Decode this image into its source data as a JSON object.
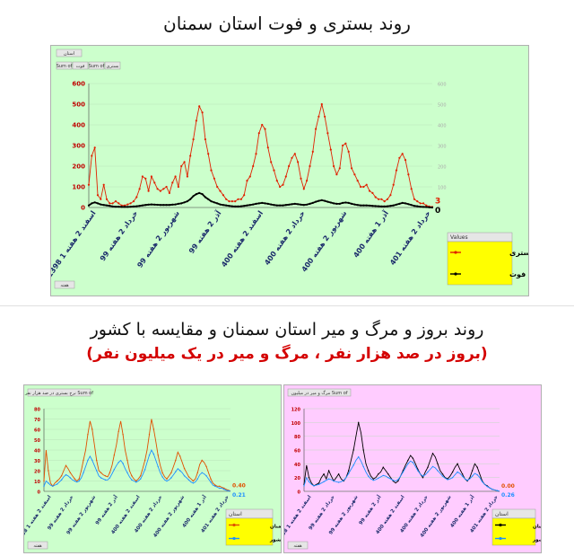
{
  "page": {
    "title_top": "روند بستری و فوت استان سمنان",
    "title_bottom": "روند بروز و مرگ و میر استان سمنان و مقایسه با کشور",
    "subtitle_bottom": "(بروز در صد هزار نفر ، مرگ و میر در یک میلیون نفر)"
  },
  "colors": {
    "red": "#e02000",
    "black": "#000000",
    "blue": "#1e90ff",
    "orange": "#e05000",
    "green_bg": "#ccffcc",
    "pink_bg": "#ffccff",
    "legend_bg": "#ffff00"
  },
  "chart_data": [
    {
      "id": "top",
      "type": "line",
      "controls": {
        "filter_label": "استان",
        "field_buttons": [
          "Sum of",
          "فوت",
          "Sum of",
          "بستری"
        ],
        "axis_button": "هفته"
      },
      "ylim": [
        0,
        600
      ],
      "yticks": [
        "0",
        "100",
        "200",
        "300",
        "400",
        "500",
        "600"
      ],
      "y2lim": [
        0,
        600
      ],
      "y2ticks": [
        "0",
        "100",
        "200",
        "300",
        "400",
        "500",
        "600"
      ],
      "xticks": [
        "1398 اسفند 2 هفته 1",
        "99 خرداد 2 هفته",
        "99 شهریور 2 هفته",
        "99 آذر 2 هفته",
        "400 اسفند 2 هفته",
        "400 خرداد 2 هفته",
        "400 شهریور 2 هفته",
        "400 آذر 1 هفته",
        "401 خرداد 2 هفته"
      ],
      "legend_title": "Values",
      "series": [
        {
          "name": "Sum of بستری",
          "color": "#e02000",
          "end_label": "3",
          "values": [
            110,
            250,
            290,
            60,
            40,
            110,
            40,
            20,
            20,
            30,
            20,
            10,
            10,
            15,
            20,
            30,
            50,
            90,
            150,
            140,
            80,
            150,
            120,
            90,
            80,
            90,
            100,
            70,
            120,
            150,
            100,
            200,
            220,
            150,
            250,
            330,
            420,
            490,
            460,
            330,
            260,
            180,
            140,
            100,
            80,
            60,
            40,
            30,
            30,
            30,
            40,
            40,
            60,
            130,
            150,
            200,
            260,
            360,
            400,
            380,
            290,
            220,
            180,
            130,
            100,
            110,
            150,
            200,
            240,
            260,
            220,
            140,
            90,
            130,
            200,
            270,
            380,
            440,
            500,
            440,
            360,
            280,
            200,
            160,
            190,
            300,
            310,
            270,
            190,
            160,
            130,
            100,
            100,
            110,
            80,
            70,
            50,
            40,
            40,
            30,
            40,
            60,
            110,
            180,
            240,
            260,
            230,
            160,
            90,
            40,
            30,
            20,
            20,
            10,
            5,
            3
          ]
        },
        {
          "name": "Sum of فوت",
          "color": "#000000",
          "end_label": "0",
          "values": [
            10,
            20,
            25,
            20,
            15,
            12,
            10,
            8,
            5,
            4,
            4,
            3,
            3,
            3,
            4,
            5,
            6,
            8,
            10,
            12,
            14,
            15,
            14,
            13,
            12,
            12,
            12,
            12,
            14,
            15,
            18,
            20,
            25,
            30,
            40,
            55,
            65,
            70,
            65,
            50,
            40,
            30,
            25,
            20,
            15,
            12,
            10,
            8,
            6,
            5,
            5,
            6,
            8,
            10,
            12,
            15,
            18,
            20,
            22,
            20,
            18,
            15,
            12,
            10,
            10,
            10,
            12,
            14,
            16,
            18,
            16,
            14,
            12,
            14,
            18,
            22,
            28,
            32,
            35,
            32,
            28,
            24,
            20,
            18,
            18,
            22,
            24,
            22,
            18,
            15,
            12,
            10,
            10,
            10,
            9,
            8,
            7,
            6,
            5,
            5,
            6,
            8,
            10,
            14,
            18,
            22,
            20,
            16,
            12,
            8,
            6,
            4,
            3,
            2,
            1,
            0
          ]
        }
      ]
    },
    {
      "id": "left",
      "type": "line",
      "controls": {
        "header_button": "نرخ بستری در صد هزار نفر Sum of",
        "filter_label": "استان",
        "axis_button": "هفته"
      },
      "ylim": [
        0,
        80
      ],
      "yticks": [
        "0",
        "10",
        "20",
        "30",
        "40",
        "50",
        "60",
        "70",
        "80"
      ],
      "xticks": [
        "1398 اسفند 2 هفته 1",
        "99 خرداد 2 هفته",
        "99 شهریور 2 هفته",
        "99 آذر 2 هفته",
        "400 اسفند 2 هفته",
        "400 خرداد 2 هفته",
        "400 شهریور 2 هفته",
        "400 آذر 1 هفته",
        "401 خرداد 2 هفته"
      ],
      "legend_title": "استان",
      "series": [
        {
          "name": "سمنان",
          "color": "#e05000",
          "end_label": "0.40",
          "values": [
            10,
            40,
            20,
            8,
            5,
            8,
            10,
            12,
            15,
            20,
            25,
            22,
            18,
            15,
            12,
            10,
            12,
            20,
            30,
            40,
            55,
            68,
            60,
            45,
            30,
            20,
            18,
            16,
            15,
            14,
            18,
            25,
            35,
            45,
            58,
            68,
            55,
            40,
            30,
            20,
            15,
            12,
            10,
            12,
            15,
            22,
            30,
            40,
            55,
            70,
            60,
            48,
            35,
            25,
            18,
            14,
            12,
            15,
            18,
            24,
            30,
            38,
            34,
            28,
            22,
            18,
            14,
            12,
            10,
            12,
            18,
            26,
            30,
            28,
            24,
            18,
            12,
            8,
            6,
            5,
            5,
            4,
            3,
            2,
            1,
            0.4
          ]
        },
        {
          "name": "کل کشور",
          "color": "#1e90ff",
          "end_label": "0.21",
          "values": [
            5,
            10,
            8,
            6,
            5,
            6,
            7,
            9,
            11,
            14,
            16,
            15,
            13,
            11,
            10,
            9,
            10,
            13,
            18,
            24,
            30,
            34,
            30,
            25,
            20,
            15,
            13,
            12,
            11,
            11,
            13,
            17,
            21,
            25,
            28,
            30,
            27,
            22,
            18,
            14,
            11,
            10,
            9,
            10,
            12,
            16,
            21,
            28,
            35,
            40,
            36,
            30,
            24,
            18,
            14,
            11,
            10,
            11,
            13,
            16,
            19,
            22,
            20,
            18,
            15,
            13,
            11,
            9,
            8,
            9,
            12,
            16,
            18,
            17,
            15,
            12,
            9,
            6,
            5,
            4,
            3,
            3,
            2,
            1,
            0.5,
            0.21
          ]
        }
      ]
    },
    {
      "id": "right",
      "type": "line",
      "controls": {
        "header_button": "مرگ و میر در میلیون Sum of",
        "filter_label": "استان",
        "axis_button": "هفته"
      },
      "ylim": [
        0,
        120
      ],
      "yticks": [
        "0",
        "20",
        "40",
        "60",
        "80",
        "100",
        "120"
      ],
      "xticks": [
        "1398 اسفند 2 هفته 1",
        "99 خرداد 2 هفته",
        "99 شهریور 2 هفته",
        "99 آذر 2 هفته",
        "400 اسفند 2 هفته",
        "400 خرداد 2 هفته",
        "400 شهریور 2 هفته",
        "400 آذر 1 هفته",
        "401 خرداد 2 هفته"
      ],
      "legend_title": "استان",
      "series": [
        {
          "name": "سمنان",
          "color": "#000000",
          "end_label": "0.00",
          "values": [
            10,
            38,
            20,
            12,
            8,
            10,
            12,
            20,
            25,
            18,
            30,
            22,
            15,
            20,
            25,
            18,
            15,
            20,
            30,
            45,
            60,
            80,
            100,
            85,
            60,
            40,
            30,
            22,
            18,
            20,
            25,
            28,
            35,
            30,
            25,
            20,
            15,
            12,
            15,
            22,
            30,
            38,
            45,
            52,
            48,
            40,
            32,
            25,
            20,
            28,
            35,
            45,
            55,
            50,
            40,
            30,
            25,
            20,
            18,
            22,
            28,
            35,
            40,
            32,
            25,
            18,
            15,
            20,
            30,
            40,
            35,
            25,
            15,
            10,
            8,
            5,
            3,
            2,
            1,
            0
          ]
        },
        {
          "name": "کل کشور",
          "color": "#1e90ff",
          "end_label": "0.26",
          "values": [
            8,
            20,
            14,
            10,
            8,
            9,
            10,
            12,
            14,
            16,
            18,
            17,
            15,
            14,
            13,
            14,
            16,
            20,
            26,
            32,
            38,
            45,
            50,
            44,
            36,
            28,
            22,
            18,
            16,
            17,
            19,
            21,
            23,
            22,
            20,
            18,
            16,
            15,
            17,
            22,
            28,
            34,
            40,
            44,
            42,
            36,
            30,
            25,
            22,
            24,
            28,
            32,
            36,
            34,
            30,
            26,
            22,
            19,
            17,
            18,
            20,
            24,
            28,
            26,
            22,
            18,
            16,
            18,
            22,
            26,
            24,
            20,
            14,
            10,
            7,
            5,
            3,
            2,
            1,
            0.26
          ]
        }
      ]
    }
  ]
}
